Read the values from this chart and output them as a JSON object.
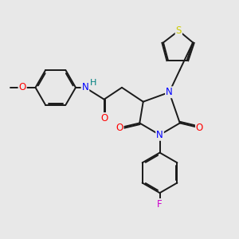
{
  "background_color": "#e8e8e8",
  "figsize": [
    3.0,
    3.0
  ],
  "dpi": 100,
  "colors": {
    "S": "#cccc00",
    "N": "#0000ff",
    "O": "#ff0000",
    "F": "#cc00cc",
    "NH_H": "#008080",
    "bond": "#1a1a1a",
    "bg": "#e8e8e8"
  },
  "bond_lw": 1.4,
  "dbl_sep": 0.055
}
